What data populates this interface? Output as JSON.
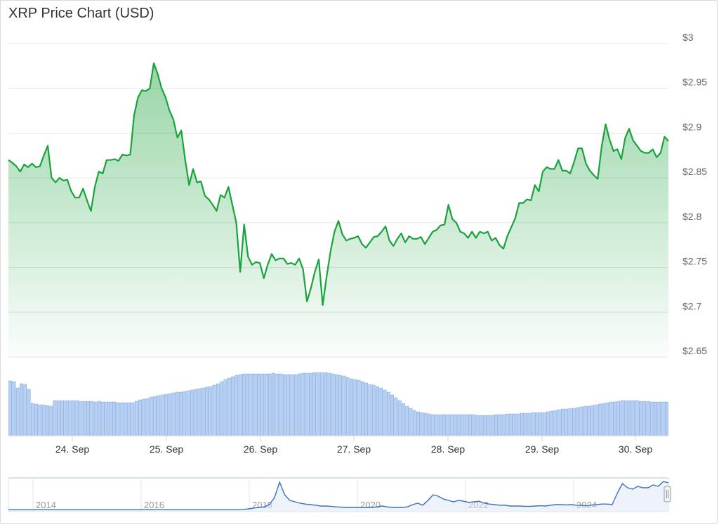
{
  "title": "XRP Price Chart (USD)",
  "colors": {
    "line": "#1aa33c",
    "fill_top": "#1aa33c",
    "volume": "#b7cff0",
    "volume_stroke": "#5b8fd6",
    "navigator": "#3d6fc1",
    "grid": "#e6e6e6"
  },
  "chart_data": {
    "type": "line",
    "title": "XRP Price Chart (USD)",
    "xlabel": "",
    "ylabel": "",
    "ylim": [
      2.65,
      3.0
    ],
    "y_ticks": [
      "$3",
      "$2.95",
      "$2.9",
      "$2.85",
      "$2.8",
      "$2.75",
      "$2.7",
      "$2.65"
    ],
    "x_ticks": [
      "24. Sep",
      "25. Sep",
      "26. Sep",
      "27. Sep",
      "28. Sep",
      "29. Sep",
      "30. Sep"
    ],
    "series": [
      {
        "values": [
          2.87,
          2.867,
          2.863,
          2.857,
          2.865,
          2.862,
          2.866,
          2.862,
          2.863,
          2.875,
          2.886,
          2.85,
          2.845,
          2.85,
          2.847,
          2.848,
          2.835,
          2.828,
          2.828,
          2.838,
          2.825,
          2.813,
          2.84,
          2.857,
          2.855,
          2.87,
          2.87,
          2.871,
          2.869,
          2.876,
          2.875,
          2.876,
          2.92,
          2.94,
          2.948,
          2.947,
          2.95,
          2.978,
          2.966,
          2.95,
          2.94,
          2.925,
          2.915,
          2.895,
          2.903,
          2.87,
          2.842,
          2.86,
          2.845,
          2.846,
          2.83,
          2.826,
          2.82,
          2.813,
          2.831,
          2.828,
          2.84,
          2.82,
          2.8,
          2.745,
          2.798,
          2.762,
          2.753,
          2.756,
          2.755,
          2.738,
          2.753,
          2.765,
          2.758,
          2.76,
          2.76,
          2.754,
          2.755,
          2.753,
          2.76,
          2.748,
          2.712,
          2.727,
          2.745,
          2.759,
          2.708,
          2.74,
          2.768,
          2.79,
          2.802,
          2.787,
          2.78,
          2.782,
          2.783,
          2.785,
          2.776,
          2.772,
          2.778,
          2.784,
          2.785,
          2.79,
          2.796,
          2.78,
          2.774,
          2.782,
          2.788,
          2.778,
          2.785,
          2.782,
          2.782,
          2.784,
          2.776,
          2.783,
          2.79,
          2.792,
          2.797,
          2.798,
          2.82,
          2.804,
          2.8,
          2.79,
          2.788,
          2.783,
          2.79,
          2.783,
          2.79,
          2.788,
          2.79,
          2.78,
          2.783,
          2.775,
          2.771,
          2.785,
          2.795,
          2.805,
          2.822,
          2.822,
          2.826,
          2.825,
          2.842,
          2.835,
          2.857,
          2.862,
          2.86,
          2.86,
          2.87,
          2.858,
          2.858,
          2.855,
          2.868,
          2.883,
          2.883,
          2.866,
          2.858,
          2.853,
          2.849,
          2.885,
          2.91,
          2.893,
          2.88,
          2.882,
          2.871,
          2.895,
          2.905,
          2.892,
          2.886,
          2.88,
          2.878,
          2.878,
          2.882,
          2.873,
          2.878,
          2.896,
          2.891
        ]
      }
    ],
    "volume": [
      0.78,
      0.77,
      0.68,
      0.74,
      0.73,
      0.66,
      0.46,
      0.45,
      0.44,
      0.44,
      0.43,
      0.42,
      0.5,
      0.5,
      0.5,
      0.5,
      0.5,
      0.5,
      0.5,
      0.49,
      0.49,
      0.49,
      0.49,
      0.48,
      0.49,
      0.48,
      0.48,
      0.48,
      0.48,
      0.47,
      0.47,
      0.47,
      0.47,
      0.47,
      0.49,
      0.51,
      0.52,
      0.53,
      0.55,
      0.56,
      0.57,
      0.58,
      0.59,
      0.6,
      0.61,
      0.62,
      0.62,
      0.63,
      0.64,
      0.65,
      0.66,
      0.67,
      0.68,
      0.69,
      0.7,
      0.72,
      0.74,
      0.77,
      0.8,
      0.82,
      0.84,
      0.86,
      0.87,
      0.88,
      0.88,
      0.88,
      0.88,
      0.88,
      0.88,
      0.88,
      0.88,
      0.89,
      0.88,
      0.88,
      0.87,
      0.87,
      0.87,
      0.87,
      0.88,
      0.89,
      0.89,
      0.89,
      0.9,
      0.9,
      0.9,
      0.9,
      0.89,
      0.88,
      0.87,
      0.86,
      0.85,
      0.83,
      0.81,
      0.8,
      0.79,
      0.77,
      0.75,
      0.73,
      0.72,
      0.7,
      0.68,
      0.65,
      0.62,
      0.58,
      0.54,
      0.5,
      0.46,
      0.42,
      0.39,
      0.36,
      0.34,
      0.33,
      0.32,
      0.31,
      0.3,
      0.3,
      0.3,
      0.3,
      0.3,
      0.3,
      0.3,
      0.3,
      0.3,
      0.3,
      0.3,
      0.3,
      0.29,
      0.29,
      0.29,
      0.29,
      0.29,
      0.3,
      0.3,
      0.3,
      0.31,
      0.31,
      0.31,
      0.31,
      0.32,
      0.32,
      0.32,
      0.33,
      0.33,
      0.33,
      0.33,
      0.34,
      0.35,
      0.36,
      0.37,
      0.38,
      0.38,
      0.39,
      0.39,
      0.4,
      0.41,
      0.42,
      0.42,
      0.43,
      0.44,
      0.45,
      0.46,
      0.47,
      0.48,
      0.48,
      0.49,
      0.5,
      0.5,
      0.5,
      0.5,
      0.5,
      0.49,
      0.49,
      0.49,
      0.48,
      0.48,
      0.48,
      0.48,
      0.48
    ]
  },
  "navigator": {
    "x_ticks": [
      "2014",
      "2016",
      "2018",
      "2020",
      "2022",
      "2024"
    ],
    "series": [
      0.02,
      0.02,
      0.02,
      0.02,
      0.02,
      0.02,
      0.02,
      0.02,
      0.02,
      0.02,
      0.02,
      0.02,
      0.02,
      0.02,
      0.02,
      0.02,
      0.02,
      0.02,
      0.02,
      0.02,
      0.02,
      0.02,
      0.02,
      0.02,
      0.02,
      0.02,
      0.02,
      0.02,
      0.02,
      0.02,
      0.02,
      0.02,
      0.02,
      0.02,
      0.02,
      0.02,
      0.02,
      0.02,
      0.02,
      0.02,
      0.02,
      0.02,
      0.02,
      0.02,
      0.02,
      0.02,
      0.03,
      0.05,
      0.08,
      0.1,
      0.12,
      0.2,
      0.45,
      1.0,
      0.55,
      0.35,
      0.3,
      0.25,
      0.22,
      0.2,
      0.18,
      0.15,
      0.15,
      0.14,
      0.12,
      0.11,
      0.1,
      0.1,
      0.1,
      0.1,
      0.1,
      0.1,
      0.12,
      0.15,
      0.12,
      0.1,
      0.1,
      0.1,
      0.12,
      0.2,
      0.25,
      0.18,
      0.35,
      0.55,
      0.5,
      0.4,
      0.35,
      0.3,
      0.35,
      0.32,
      0.28,
      0.3,
      0.32,
      0.25,
      0.22,
      0.2,
      0.18,
      0.18,
      0.15,
      0.15,
      0.15,
      0.14,
      0.14,
      0.15,
      0.16,
      0.15,
      0.18,
      0.2,
      0.2,
      0.19,
      0.2,
      0.18,
      0.17,
      0.16,
      0.18,
      0.2,
      0.22,
      0.22,
      0.2,
      0.6,
      0.95,
      0.8,
      0.75,
      0.85,
      0.8,
      0.8,
      0.9,
      0.85,
      1.02,
      0.98
    ]
  }
}
